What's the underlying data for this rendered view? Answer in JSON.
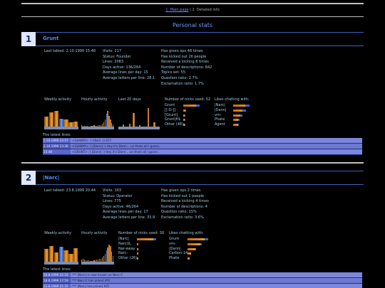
{
  "nav": {
    "main_link": "1. Main page",
    "sep": " | ",
    "current": "2. Detailed info"
  },
  "page_title": "Personal stats",
  "colors": {
    "accent": "#4f8cff",
    "bar_orange": "#f0a030",
    "bar_blue": "#6f9aff",
    "log_row": "#7b86dc"
  },
  "sections": [
    {
      "number": "1",
      "name": "Grunt",
      "col1": [
        "Last talked: 2.10.1999 15:48"
      ],
      "col2": [
        "Visits: 217",
        "Status: Founder",
        "Lines: 2083",
        "Days active: 136/264",
        "Average lines per day: 15",
        "Average letters per line: 28.1"
      ],
      "col3": [
        "Has given ops 48 times",
        "Has kicked out 26 people",
        "Received a kicking 8 times",
        "Number of descriptions: 842",
        "Topics set: 55",
        "Question ratio: 2.7%",
        "Exclamation ratio: 1.7%"
      ],
      "weekly_label": "Weekly activity",
      "hourly_label": "Hourly activity",
      "last20_label": "Last 20 days",
      "nicks_label": "Number of nicks used: 52",
      "chatting_label": "Likes chatting with:",
      "nicks": [
        {
          "name": "Grunt",
          "a": 0.6,
          "b": 0.12
        },
        {
          "name": "[[-D-]]",
          "a": 0.1,
          "b": 0.02
        },
        {
          "name": "[Grunt]",
          "a": 0.08,
          "b": 0.02
        },
        {
          "name": "Grunt|HL",
          "a": 0.07,
          "b": 0.02
        },
        {
          "name": "Other (48)",
          "a": 0.05,
          "b": 0.01
        }
      ],
      "chatting": [
        {
          "name": "|Narc|",
          "a": 0.72,
          "b": 0.2
        },
        {
          "name": "|Dann|",
          "a": 0.55,
          "b": 0.15
        },
        {
          "name": "vm-",
          "a": 0.42,
          "b": 0.1
        },
        {
          "name": "Phate",
          "a": 0.28,
          "b": 0.05
        },
        {
          "name": "Agent",
          "a": 0.25,
          "b": 0.04
        }
      ],
      "weekly_values": [
        0.45,
        0.62,
        0.7,
        0.35,
        0.3,
        0.18,
        0.22
      ],
      "hourly_values": [
        0.06,
        0.04,
        0.03,
        0.02,
        0.02,
        0.01,
        0.01,
        0.02,
        0.04,
        0.05,
        0.03,
        0.04,
        0.05,
        0.06,
        0.07,
        0.12,
        0.18,
        0.3,
        0.55,
        0.7,
        0.48,
        0.3,
        0.16,
        0.1
      ],
      "last20_values": [
        0.0,
        0.0,
        0.1,
        0.0,
        0.0,
        0.12,
        0.0,
        0.6,
        0.0,
        0.0,
        0.05,
        0.0,
        0.0,
        0.0,
        0.8,
        0.0,
        0.0,
        0.2,
        0.0,
        0.0
      ],
      "latest_label": "The latest lines:",
      "log": [
        {
          "time": "1.10.1999 23:57",
          "text": "<G|AWAY> :) Väsiä :)) E57"
        },
        {
          "time": "2.10.1999 13:36",
          "text": "<G|AWAY> :) |Dann| :) Hey it's Dann... un thats all I guess.."
        },
        {
          "time": "15:48",
          "text": "<GRUNT> :) |Dann| :) Hey it's Dann... un thats all I guess.."
        }
      ]
    },
    {
      "number": "2",
      "name": "|Narc|",
      "col1": [
        "Last talked: 23.8.1999 20:44"
      ],
      "col2": [
        "Visits: 163",
        "Status: Operator",
        "Lines: 775",
        "Days active: 46/264",
        "Average lines per day: 17",
        "Average letters per line: 33.9"
      ],
      "col3": [
        "Has given ops 2 times",
        "Has kicked out 1 people",
        "Received a kicking 4 times",
        "Number of descriptions: 4",
        "Question ratio: 15%",
        "Exclamation ratio: 3.6%"
      ],
      "weekly_label": "Weekly activity",
      "hourly_label": "Hourly activity",
      "nicks_label": "Number of nicks used: 30",
      "chatting_label": "Likes chatting with:",
      "nicks": [
        {
          "name": "|Narc|",
          "a": 0.7,
          "b": 0.1
        },
        {
          "name": "NarcUL",
          "a": 0.04,
          "b": 0.0
        },
        {
          "name": "Nar-away",
          "a": 0.04,
          "b": 0.0
        },
        {
          "name": "Narc-",
          "a": 0.04,
          "b": 0.0
        },
        {
          "name": "Other (26)",
          "a": 0.03,
          "b": 0.0
        }
      ],
      "chatting": [
        {
          "name": "Grunt",
          "a": 0.68,
          "b": 0.1
        },
        {
          "name": "vm-",
          "a": 0.48,
          "b": 0.05
        },
        {
          "name": "|Dann|",
          "a": 0.28,
          "b": 0.03
        },
        {
          "name": "Carbon-14",
          "a": 0.12,
          "b": 0.0
        },
        {
          "name": "Phate",
          "a": 0.08,
          "b": 0.0
        }
      ],
      "weekly_values": [
        0.55,
        0.7,
        0.4,
        0.65,
        0.5,
        0.35,
        0.6
      ],
      "hourly_values": [
        0.1,
        0.12,
        0.08,
        0.06,
        0.05,
        0.05,
        0.04,
        0.03,
        0.04,
        0.05,
        0.06,
        0.08,
        0.1,
        0.12,
        0.14,
        0.18,
        0.24,
        0.35,
        0.5,
        0.62,
        0.75,
        0.68,
        0.45,
        0.25
      ],
      "latest_label": "The latest lines:",
      "log": [
        {
          "time": "18.8.1999 22:16",
          "text": "*** |Narc| is now known as Narc-C"
        },
        {
          "time": "18.8.1999 17:59",
          "text": "*** Narc-C has joined #f2"
        },
        {
          "time": "23.8.1999 21:35",
          "text": "*** |Narc| has joined #f2"
        }
      ]
    }
  ]
}
